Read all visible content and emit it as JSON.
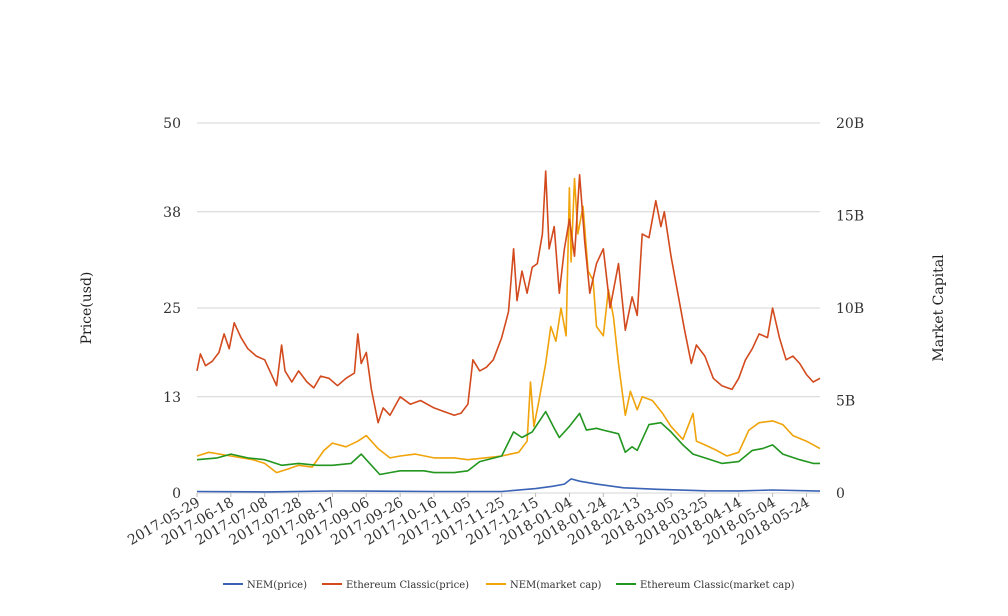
{
  "chart_data": {
    "type": "line",
    "title": "",
    "ylabel_left": "Price(usd)",
    "ylabel_right": "Market Capital",
    "left_axis": {
      "min": 0,
      "max": 50,
      "ticks": [
        0,
        13,
        25,
        38,
        50
      ]
    },
    "right_axis": {
      "min": 0,
      "max": 20000000000,
      "ticks": [
        0,
        5000000000,
        10000000000,
        15000000000,
        20000000000
      ],
      "tick_labels": [
        "0",
        "5B",
        "10B",
        "15B",
        "20B"
      ]
    },
    "x_start": "2017-05-29",
    "x_end": "2018-06-01",
    "x_tick_labels": [
      "2017-05-29",
      "2017-06-18",
      "2017-07-08",
      "2017-07-28",
      "2017-08-17",
      "2017-09-06",
      "2017-09-26",
      "2017-10-16",
      "2017-11-05",
      "2017-11-25",
      "2017-12-15",
      "2018-01-04",
      "2018-01-24",
      "2018-02-13",
      "2018-03-05",
      "2018-03-25",
      "2018-04-14",
      "2018-05-04",
      "2018-05-24"
    ],
    "grid": true,
    "legend_position": "bottom",
    "series": [
      {
        "name": "NEM(price)",
        "color": "#3a63b5",
        "axis": "left",
        "points": [
          [
            "2017-05-29",
            0.2
          ],
          [
            "2017-07-08",
            0.15
          ],
          [
            "2017-08-17",
            0.27
          ],
          [
            "2017-09-06",
            0.25
          ],
          [
            "2017-10-16",
            0.2
          ],
          [
            "2017-11-25",
            0.2
          ],
          [
            "2017-12-15",
            0.6
          ],
          [
            "2017-12-25",
            0.9
          ],
          [
            "2018-01-01",
            1.2
          ],
          [
            "2018-01-05",
            1.9
          ],
          [
            "2018-01-10",
            1.6
          ],
          [
            "2018-01-20",
            1.2
          ],
          [
            "2018-02-05",
            0.7
          ],
          [
            "2018-02-25",
            0.5
          ],
          [
            "2018-03-25",
            0.3
          ],
          [
            "2018-04-14",
            0.28
          ],
          [
            "2018-05-04",
            0.4
          ],
          [
            "2018-06-01",
            0.25
          ]
        ]
      },
      {
        "name": "Ethereum Classic(price)",
        "color": "#d24a1e",
        "axis": "left",
        "points": [
          [
            "2017-05-29",
            16.5
          ],
          [
            "2017-05-31",
            18.8
          ],
          [
            "2017-06-03",
            17.2
          ],
          [
            "2017-06-07",
            17.8
          ],
          [
            "2017-06-11",
            19.0
          ],
          [
            "2017-06-14",
            21.5
          ],
          [
            "2017-06-17",
            19.5
          ],
          [
            "2017-06-20",
            23.0
          ],
          [
            "2017-06-24",
            21.0
          ],
          [
            "2017-06-28",
            19.5
          ],
          [
            "2017-07-03",
            18.5
          ],
          [
            "2017-07-08",
            18.0
          ],
          [
            "2017-07-12",
            16.0
          ],
          [
            "2017-07-15",
            14.5
          ],
          [
            "2017-07-18",
            20.0
          ],
          [
            "2017-07-20",
            16.5
          ],
          [
            "2017-07-24",
            15.0
          ],
          [
            "2017-07-28",
            16.5
          ],
          [
            "2017-08-02",
            15.0
          ],
          [
            "2017-08-06",
            14.2
          ],
          [
            "2017-08-10",
            15.8
          ],
          [
            "2017-08-15",
            15.5
          ],
          [
            "2017-08-20",
            14.5
          ],
          [
            "2017-08-25",
            15.5
          ],
          [
            "2017-08-30",
            16.2
          ],
          [
            "2017-09-01",
            21.5
          ],
          [
            "2017-09-03",
            17.5
          ],
          [
            "2017-09-06",
            19.0
          ],
          [
            "2017-09-09",
            14.0
          ],
          [
            "2017-09-13",
            9.5
          ],
          [
            "2017-09-16",
            11.5
          ],
          [
            "2017-09-20",
            10.5
          ],
          [
            "2017-09-26",
            13.0
          ],
          [
            "2017-10-02",
            12.0
          ],
          [
            "2017-10-08",
            12.5
          ],
          [
            "2017-10-16",
            11.5
          ],
          [
            "2017-10-22",
            11.0
          ],
          [
            "2017-10-28",
            10.5
          ],
          [
            "2017-11-01",
            10.8
          ],
          [
            "2017-11-05",
            12.0
          ],
          [
            "2017-11-08",
            18.0
          ],
          [
            "2017-11-12",
            16.5
          ],
          [
            "2017-11-16",
            17.0
          ],
          [
            "2017-11-20",
            18.0
          ],
          [
            "2017-11-25",
            21.0
          ],
          [
            "2017-11-29",
            24.5
          ],
          [
            "2017-12-02",
            33.0
          ],
          [
            "2017-12-04",
            26.0
          ],
          [
            "2017-12-07",
            30.0
          ],
          [
            "2017-12-10",
            27.0
          ],
          [
            "2017-12-13",
            30.5
          ],
          [
            "2017-12-16",
            31.0
          ],
          [
            "2017-12-19",
            35.0
          ],
          [
            "2017-12-21",
            43.5
          ],
          [
            "2017-12-23",
            33.0
          ],
          [
            "2017-12-26",
            36.0
          ],
          [
            "2017-12-29",
            27.0
          ],
          [
            "2018-01-01",
            33.0
          ],
          [
            "2018-01-04",
            37.0
          ],
          [
            "2018-01-07",
            32.0
          ],
          [
            "2018-01-10",
            43.0
          ],
          [
            "2018-01-13",
            34.0
          ],
          [
            "2018-01-16",
            27.0
          ],
          [
            "2018-01-20",
            31.0
          ],
          [
            "2018-01-24",
            33.0
          ],
          [
            "2018-01-28",
            25.0
          ],
          [
            "2018-02-02",
            31.0
          ],
          [
            "2018-02-06",
            22.0
          ],
          [
            "2018-02-10",
            26.5
          ],
          [
            "2018-02-13",
            24.0
          ],
          [
            "2018-02-16",
            35.0
          ],
          [
            "2018-02-20",
            34.5
          ],
          [
            "2018-02-24",
            39.5
          ],
          [
            "2018-02-27",
            36.0
          ],
          [
            "2018-03-01",
            38.0
          ],
          [
            "2018-03-05",
            32.0
          ],
          [
            "2018-03-09",
            27.0
          ],
          [
            "2018-03-13",
            22.0
          ],
          [
            "2018-03-17",
            17.5
          ],
          [
            "2018-03-20",
            20.0
          ],
          [
            "2018-03-25",
            18.5
          ],
          [
            "2018-03-30",
            15.5
          ],
          [
            "2018-04-04",
            14.5
          ],
          [
            "2018-04-10",
            14.0
          ],
          [
            "2018-04-14",
            15.5
          ],
          [
            "2018-04-18",
            18.0
          ],
          [
            "2018-04-22",
            19.5
          ],
          [
            "2018-04-26",
            21.5
          ],
          [
            "2018-05-01",
            21.0
          ],
          [
            "2018-05-04",
            25.0
          ],
          [
            "2018-05-08",
            21.0
          ],
          [
            "2018-05-12",
            18.0
          ],
          [
            "2018-05-16",
            18.5
          ],
          [
            "2018-05-20",
            17.5
          ],
          [
            "2018-05-24",
            16.0
          ],
          [
            "2018-05-28",
            15.0
          ],
          [
            "2018-06-01",
            15.5
          ]
        ]
      },
      {
        "name": "NEM(market cap)",
        "color": "#f0a30a",
        "axis": "right",
        "points": [
          [
            "2017-05-29",
            2000000000
          ],
          [
            "2017-06-05",
            2200000000
          ],
          [
            "2017-06-18",
            2000000000
          ],
          [
            "2017-07-01",
            1800000000
          ],
          [
            "2017-07-08",
            1600000000
          ],
          [
            "2017-07-15",
            1100000000
          ],
          [
            "2017-07-22",
            1300000000
          ],
          [
            "2017-07-28",
            1500000000
          ],
          [
            "2017-08-05",
            1400000000
          ],
          [
            "2017-08-12",
            2300000000
          ],
          [
            "2017-08-17",
            2700000000
          ],
          [
            "2017-08-25",
            2500000000
          ],
          [
            "2017-09-01",
            2800000000
          ],
          [
            "2017-09-06",
            3100000000
          ],
          [
            "2017-09-13",
            2400000000
          ],
          [
            "2017-09-20",
            1900000000
          ],
          [
            "2017-09-26",
            2000000000
          ],
          [
            "2017-10-05",
            2100000000
          ],
          [
            "2017-10-16",
            1900000000
          ],
          [
            "2017-10-28",
            1900000000
          ],
          [
            "2017-11-05",
            1800000000
          ],
          [
            "2017-11-15",
            1900000000
          ],
          [
            "2017-11-25",
            2000000000
          ],
          [
            "2017-12-05",
            2200000000
          ],
          [
            "2017-12-10",
            2800000000
          ],
          [
            "2017-12-12",
            6000000000
          ],
          [
            "2017-12-14",
            3600000000
          ],
          [
            "2017-12-17",
            5000000000
          ],
          [
            "2017-12-21",
            7000000000
          ],
          [
            "2017-12-24",
            9000000000
          ],
          [
            "2017-12-27",
            8200000000
          ],
          [
            "2017-12-30",
            10000000000
          ],
          [
            "2018-01-02",
            8500000000
          ],
          [
            "2018-01-04",
            16500000000
          ],
          [
            "2018-01-05",
            12500000000
          ],
          [
            "2018-01-07",
            17000000000
          ],
          [
            "2018-01-09",
            14000000000
          ],
          [
            "2018-01-12",
            15500000000
          ],
          [
            "2018-01-15",
            12000000000
          ],
          [
            "2018-01-18",
            11500000000
          ],
          [
            "2018-01-20",
            9000000000
          ],
          [
            "2018-01-24",
            8500000000
          ],
          [
            "2018-01-27",
            11000000000
          ],
          [
            "2018-01-30",
            9500000000
          ],
          [
            "2018-02-02",
            7000000000
          ],
          [
            "2018-02-06",
            4200000000
          ],
          [
            "2018-02-09",
            5500000000
          ],
          [
            "2018-02-13",
            4500000000
          ],
          [
            "2018-02-16",
            5200000000
          ],
          [
            "2018-02-22",
            5000000000
          ],
          [
            "2018-02-28",
            4300000000
          ],
          [
            "2018-03-05",
            3600000000
          ],
          [
            "2018-03-12",
            2900000000
          ],
          [
            "2018-03-18",
            4300000000
          ],
          [
            "2018-03-20",
            2800000000
          ],
          [
            "2018-03-25",
            2600000000
          ],
          [
            "2018-04-01",
            2300000000
          ],
          [
            "2018-04-07",
            2000000000
          ],
          [
            "2018-04-14",
            2200000000
          ],
          [
            "2018-04-20",
            3400000000
          ],
          [
            "2018-04-26",
            3800000000
          ],
          [
            "2018-05-04",
            3900000000
          ],
          [
            "2018-05-10",
            3700000000
          ],
          [
            "2018-05-16",
            3100000000
          ],
          [
            "2018-05-24",
            2800000000
          ],
          [
            "2018-06-01",
            2400000000
          ]
        ]
      },
      {
        "name": "Ethereum Classic(market cap)",
        "color": "#22961f",
        "axis": "right",
        "points": [
          [
            "2017-05-29",
            1800000000
          ],
          [
            "2017-06-10",
            1900000000
          ],
          [
            "2017-06-18",
            2100000000
          ],
          [
            "2017-06-28",
            1900000000
          ],
          [
            "2017-07-08",
            1800000000
          ],
          [
            "2017-07-18",
            1500000000
          ],
          [
            "2017-07-28",
            1600000000
          ],
          [
            "2017-08-08",
            1500000000
          ],
          [
            "2017-08-17",
            1500000000
          ],
          [
            "2017-08-28",
            1600000000
          ],
          [
            "2017-09-03",
            2100000000
          ],
          [
            "2017-09-08",
            1600000000
          ],
          [
            "2017-09-14",
            1000000000
          ],
          [
            "2017-09-20",
            1100000000
          ],
          [
            "2017-09-26",
            1200000000
          ],
          [
            "2017-10-10",
            1200000000
          ],
          [
            "2017-10-16",
            1100000000
          ],
          [
            "2017-10-28",
            1100000000
          ],
          [
            "2017-11-05",
            1200000000
          ],
          [
            "2017-11-12",
            1700000000
          ],
          [
            "2017-11-25",
            2000000000
          ],
          [
            "2017-12-02",
            3300000000
          ],
          [
            "2017-12-07",
            3000000000
          ],
          [
            "2017-12-13",
            3300000000
          ],
          [
            "2017-12-21",
            4400000000
          ],
          [
            "2017-12-26",
            3500000000
          ],
          [
            "2017-12-29",
            3000000000
          ],
          [
            "2018-01-04",
            3600000000
          ],
          [
            "2018-01-10",
            4300000000
          ],
          [
            "2018-01-14",
            3400000000
          ],
          [
            "2018-01-20",
            3500000000
          ],
          [
            "2018-01-24",
            3400000000
          ],
          [
            "2018-02-02",
            3200000000
          ],
          [
            "2018-02-06",
            2200000000
          ],
          [
            "2018-02-10",
            2500000000
          ],
          [
            "2018-02-13",
            2300000000
          ],
          [
            "2018-02-20",
            3700000000
          ],
          [
            "2018-02-27",
            3800000000
          ],
          [
            "2018-03-05",
            3300000000
          ],
          [
            "2018-03-12",
            2600000000
          ],
          [
            "2018-03-18",
            2100000000
          ],
          [
            "2018-03-25",
            1900000000
          ],
          [
            "2018-04-04",
            1600000000
          ],
          [
            "2018-04-14",
            1700000000
          ],
          [
            "2018-04-22",
            2300000000
          ],
          [
            "2018-04-28",
            2400000000
          ],
          [
            "2018-05-04",
            2600000000
          ],
          [
            "2018-05-10",
            2100000000
          ],
          [
            "2018-05-20",
            1800000000
          ],
          [
            "2018-05-28",
            1600000000
          ],
          [
            "2018-06-01",
            1600000000
          ]
        ]
      }
    ]
  }
}
